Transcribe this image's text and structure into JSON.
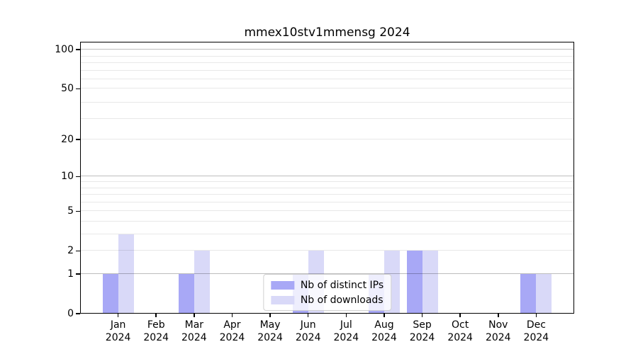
{
  "chart_data": {
    "type": "bar",
    "title": "mmex10stv1mmensg 2024",
    "x": [
      "Jan 2024",
      "Feb 2024",
      "Mar 2024",
      "Apr 2024",
      "May 2024",
      "Jun 2024",
      "Jul 2024",
      "Aug 2024",
      "Sep 2024",
      "Oct 2024",
      "Nov 2024",
      "Dec 2024"
    ],
    "months_short": [
      "Jan",
      "Feb",
      "Mar",
      "Apr",
      "May",
      "Jun",
      "Jul",
      "Aug",
      "Sep",
      "Oct",
      "Nov",
      "Dec"
    ],
    "year_label": "2024",
    "series": [
      {
        "name": "Nb of distinct IPs",
        "color": "#a8a8f6",
        "values": [
          1,
          0,
          1,
          0,
          0,
          1,
          0,
          1,
          2,
          0,
          0,
          1
        ]
      },
      {
        "name": "Nb of downloads",
        "color": "#d9d9f8",
        "values": [
          3,
          0,
          2,
          0,
          0,
          2,
          0,
          2,
          2,
          0,
          0,
          1
        ]
      }
    ],
    "yscale": "log10(1+y)",
    "ylim": [
      0,
      115
    ],
    "y_ticks_labeled": [
      0,
      1,
      2,
      5,
      10,
      20,
      50,
      100
    ],
    "grid_major": [
      1,
      10,
      100
    ],
    "grid_minor": [
      2,
      3,
      4,
      5,
      6,
      7,
      8,
      9,
      20,
      29,
      39,
      50,
      59,
      69,
      79,
      89
    ],
    "grid": "horizontal",
    "legend_position": "lower center"
  },
  "colors": {
    "axis": "#000000",
    "background": "#ffffff",
    "series_distinct_ips": "#a8a8f6",
    "series_downloads": "#d9d9f8"
  }
}
